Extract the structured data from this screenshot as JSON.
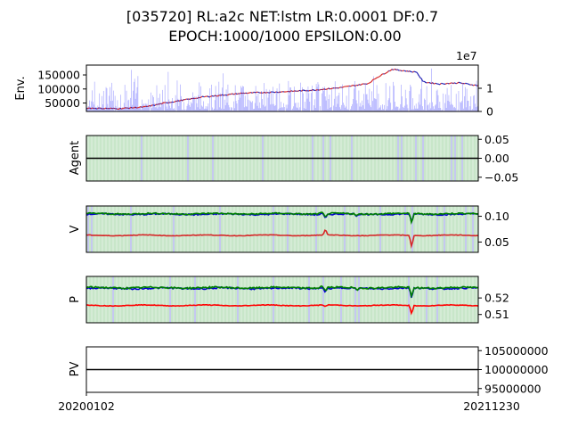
{
  "title_line1": "[035720] RL:a2c NET:lstm LR:0.0001 DF:0.7",
  "title_line2": "EPOCH:1000/1000 EPSILON:0.00",
  "x_start_label": "20200102",
  "x_end_label": "20211230",
  "chart_data": [
    {
      "type": "line",
      "name": "env",
      "ylabel": "Env.",
      "ylim": [
        20000,
        185000
      ],
      "yticks": [
        "50000",
        "100000",
        "150000"
      ],
      "ytick_values": [
        50000,
        100000,
        150000
      ],
      "secondary_axis": {
        "ylim": [
          0,
          2.0
        ],
        "ticks": [
          "0",
          "1"
        ],
        "tick_values": [
          0,
          1
        ],
        "offset_label": "1e7"
      },
      "price_keypoints": [
        [
          0,
          32000
        ],
        [
          0.08,
          30000
        ],
        [
          0.15,
          36000
        ],
        [
          0.2,
          50000
        ],
        [
          0.3,
          72000
        ],
        [
          0.4,
          85000
        ],
        [
          0.5,
          90000
        ],
        [
          0.58,
          96000
        ],
        [
          0.65,
          105000
        ],
        [
          0.72,
          120000
        ],
        [
          0.74,
          140000
        ],
        [
          0.78,
          170000
        ],
        [
          0.84,
          160000
        ],
        [
          0.84,
          165000
        ],
        [
          0.86,
          125000
        ],
        [
          0.9,
          118000
        ],
        [
          0.95,
          122000
        ],
        [
          1.0,
          112000
        ]
      ],
      "volume_description_colors": {
        "price_up": "#d62728",
        "price_down": "#1f1fb4",
        "volume": "#6666ff"
      }
    },
    {
      "type": "line",
      "name": "agent",
      "ylabel": "Agent",
      "ylim": [
        -0.06,
        0.06
      ],
      "yticks": [
        "0.05",
        "0.00",
        "−0.05"
      ],
      "ytick_values": [
        0.05,
        0.0,
        -0.05
      ],
      "value": 0.0
    },
    {
      "type": "line",
      "name": "value",
      "ylabel": "V",
      "ylim": [
        0.03,
        0.12
      ],
      "yticks": [
        "0.10",
        "0.05"
      ],
      "ytick_values": [
        0.1,
        0.05
      ],
      "series": [
        {
          "color": "#0000cc",
          "base": 0.104
        },
        {
          "color": "#008000",
          "base": 0.105
        },
        {
          "color": "#d62728",
          "base": 0.063
        }
      ],
      "dips": [
        [
          0.61,
          -0.008,
          0.012
        ],
        [
          0.69,
          -0.004,
          0.0
        ],
        [
          0.83,
          -0.018,
          -0.022
        ],
        [
          0.6,
          0.003,
          0.0
        ]
      ]
    },
    {
      "type": "line",
      "name": "policy",
      "ylabel": "P",
      "ylim": [
        0.505,
        0.533
      ],
      "yticks": [
        "0.52",
        "0.51"
      ],
      "ytick_values": [
        0.52,
        0.51
      ],
      "series": [
        {
          "color": "#0000cc",
          "base": 0.5258
        },
        {
          "color": "#008000",
          "base": 0.5262
        },
        {
          "color": "#ff0000",
          "base": 0.5155
        }
      ],
      "dips": [
        [
          0.61,
          -0.002,
          -0.001
        ],
        [
          0.69,
          -0.0015,
          0.0
        ],
        [
          0.83,
          -0.006,
          -0.005
        ],
        [
          0.6,
          0.001,
          0.0
        ]
      ]
    },
    {
      "type": "line",
      "name": "pv",
      "ylabel": "PV",
      "ylim": [
        94000000,
        106000000
      ],
      "yticks": [
        "105000000",
        "100000000",
        "95000000"
      ],
      "ytick_values": [
        105000000,
        100000000,
        95000000
      ],
      "value": 100000000
    }
  ]
}
